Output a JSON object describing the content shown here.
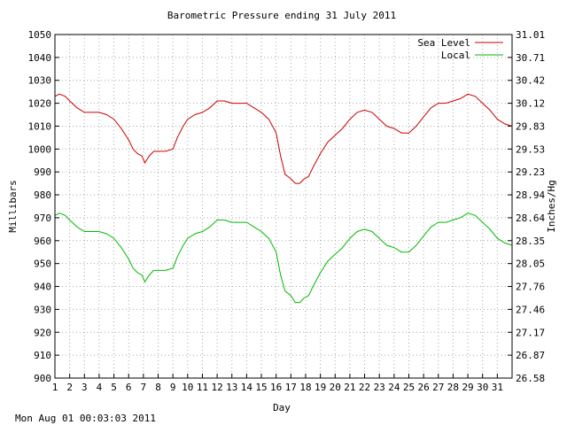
{
  "chart_data": {
    "type": "line",
    "title": "Barometric Pressure ending 31 July 2011",
    "xlabel": "Day",
    "ylabel": "Millibars",
    "y2label": "Inches/Hg",
    "xlim": [
      1,
      32
    ],
    "ylim": [
      900,
      1050
    ],
    "x_ticks": [
      "1",
      "2",
      "3",
      "4",
      "5",
      "6",
      "7",
      "8",
      "9",
      "10",
      "11",
      "12",
      "13",
      "14",
      "15",
      "16",
      "17",
      "18",
      "19",
      "20",
      "21",
      "22",
      "23",
      "24",
      "25",
      "26",
      "27",
      "28",
      "29",
      "30",
      "31"
    ],
    "y_ticks": [
      900,
      910,
      920,
      930,
      940,
      950,
      960,
      970,
      980,
      990,
      1000,
      1010,
      1020,
      1030,
      1040,
      1050
    ],
    "y2_ticks": [
      "26.58",
      "26.87",
      "27.17",
      "27.46",
      "27.76",
      "28.05",
      "28.35",
      "28.64",
      "28.94",
      "29.23",
      "29.53",
      "29.83",
      "30.12",
      "30.42",
      "30.71",
      "31.01"
    ],
    "grid": true,
    "legend_position": "top-right",
    "series": [
      {
        "name": "Sea Level",
        "color": "#cc0000",
        "x": [
          1,
          1.3,
          1.7,
          2,
          2.5,
          3,
          3.5,
          4,
          4.5,
          5,
          5.5,
          6,
          6.3,
          6.6,
          6.9,
          7.1,
          7.4,
          7.7,
          8,
          8.5,
          9,
          9.3,
          9.7,
          10,
          10.5,
          11,
          11.5,
          12,
          12.5,
          13,
          13.5,
          14,
          14.5,
          15,
          15.5,
          16,
          16.3,
          16.6,
          17,
          17.3,
          17.6,
          17.9,
          18.2,
          18.5,
          19,
          19.5,
          20,
          20.5,
          21,
          21.5,
          22,
          22.5,
          23,
          23.5,
          24,
          24.5,
          25,
          25.5,
          26,
          26.5,
          27,
          27.5,
          28,
          28.5,
          29,
          29.5,
          30,
          30.5,
          31,
          31.5,
          32
        ],
        "values": [
          1023,
          1024,
          1023,
          1021,
          1018,
          1016,
          1016,
          1016,
          1015,
          1013,
          1009,
          1004,
          1000,
          998,
          997,
          994,
          997,
          999,
          999,
          999,
          1000,
          1005,
          1010,
          1013,
          1015,
          1016,
          1018,
          1021,
          1021,
          1020,
          1020,
          1020,
          1018,
          1016,
          1013,
          1007,
          997,
          989,
          987,
          985,
          985,
          987,
          988,
          992,
          998,
          1003,
          1006,
          1009,
          1013,
          1016,
          1017,
          1016,
          1013,
          1010,
          1009,
          1007,
          1007,
          1010,
          1014,
          1018,
          1020,
          1020,
          1021,
          1022,
          1024,
          1023,
          1020,
          1017,
          1013,
          1011,
          1010
        ]
      },
      {
        "name": "Local",
        "color": "#00bb00",
        "x": [
          1,
          1.3,
          1.7,
          2,
          2.5,
          3,
          3.5,
          4,
          4.5,
          5,
          5.5,
          6,
          6.3,
          6.6,
          6.9,
          7.1,
          7.4,
          7.7,
          8,
          8.5,
          9,
          9.3,
          9.7,
          10,
          10.5,
          11,
          11.5,
          12,
          12.5,
          13,
          13.5,
          14,
          14.5,
          15,
          15.5,
          16,
          16.3,
          16.6,
          17,
          17.3,
          17.6,
          17.9,
          18.2,
          18.5,
          19,
          19.5,
          20,
          20.5,
          21,
          21.5,
          22,
          22.5,
          23,
          23.5,
          24,
          24.5,
          25,
          25.5,
          26,
          26.5,
          27,
          27.5,
          28,
          28.5,
          29,
          29.5,
          30,
          30.5,
          31,
          31.5,
          32
        ],
        "values": [
          971,
          972,
          971,
          969,
          966,
          964,
          964,
          964,
          963,
          961,
          957,
          952,
          948,
          946,
          945,
          942,
          945,
          947,
          947,
          947,
          948,
          953,
          958,
          961,
          963,
          964,
          966,
          969,
          969,
          968,
          968,
          968,
          966,
          964,
          961,
          955,
          945,
          938,
          936,
          933,
          933,
          935,
          936,
          940,
          946,
          951,
          954,
          957,
          961,
          964,
          965,
          964,
          961,
          958,
          957,
          955,
          955,
          958,
          962,
          966,
          968,
          968,
          969,
          970,
          972,
          971,
          968,
          965,
          961,
          959,
          958
        ]
      }
    ]
  },
  "footer": {
    "timestamp": "Mon Aug 01 00:03:03 2011"
  }
}
